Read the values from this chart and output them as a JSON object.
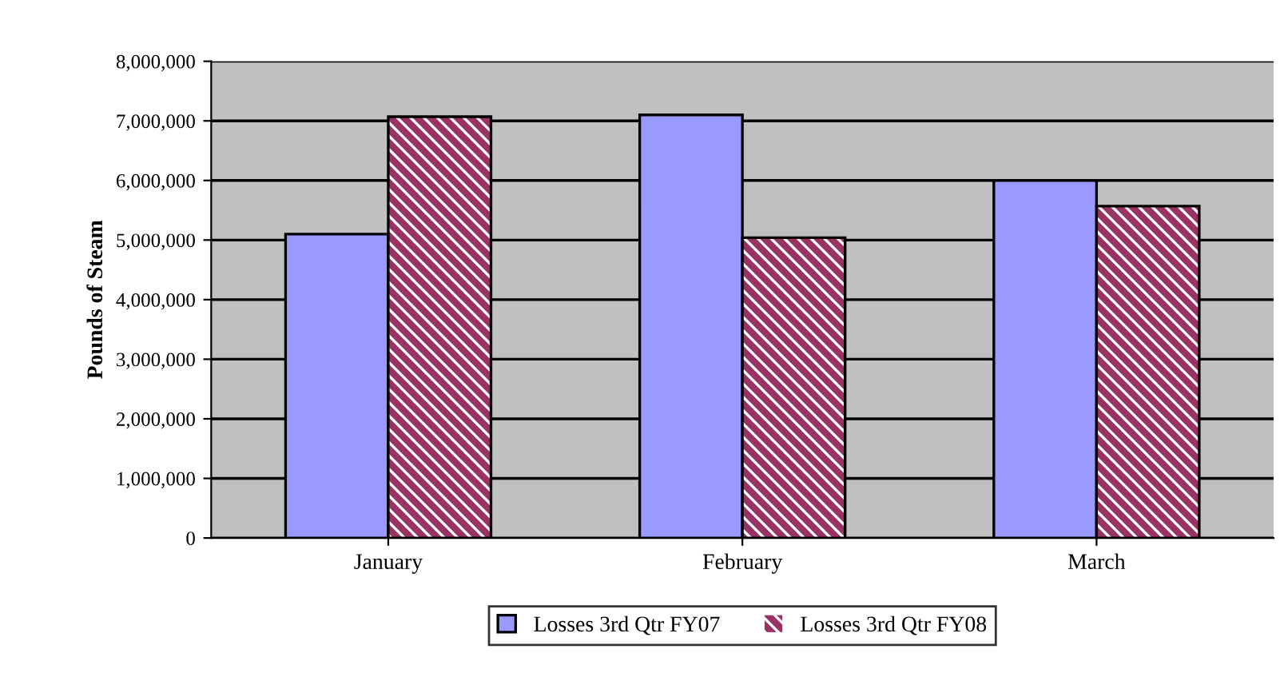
{
  "chart_data": {
    "type": "bar",
    "ylabel": "Pounds of Steam",
    "categories": [
      "January",
      "February",
      "March"
    ],
    "series": [
      {
        "name": "Losses 3rd Qtr FY07",
        "color": "#9999ff",
        "values": [
          5100000,
          7100000,
          6000000
        ]
      },
      {
        "name": "Losses 3rd Qtr FY08",
        "color": "#993366",
        "values": [
          7070000,
          5040000,
          5570000
        ]
      }
    ],
    "ylim": [
      0,
      8000000
    ],
    "yticks": [
      {
        "value": 0,
        "label": "0"
      },
      {
        "value": 1000000,
        "label": "1,000,000"
      },
      {
        "value": 2000000,
        "label": "2,000,000"
      },
      {
        "value": 3000000,
        "label": "3,000,000"
      },
      {
        "value": 4000000,
        "label": "4,000,000"
      },
      {
        "value": 5000000,
        "label": "5,000,000"
      },
      {
        "value": 6000000,
        "label": "6,000,000"
      },
      {
        "value": 7000000,
        "label": "7,000,000"
      },
      {
        "value": 8000000,
        "label": "8,000,000"
      }
    ],
    "grid": "y",
    "legend": "bottom"
  }
}
